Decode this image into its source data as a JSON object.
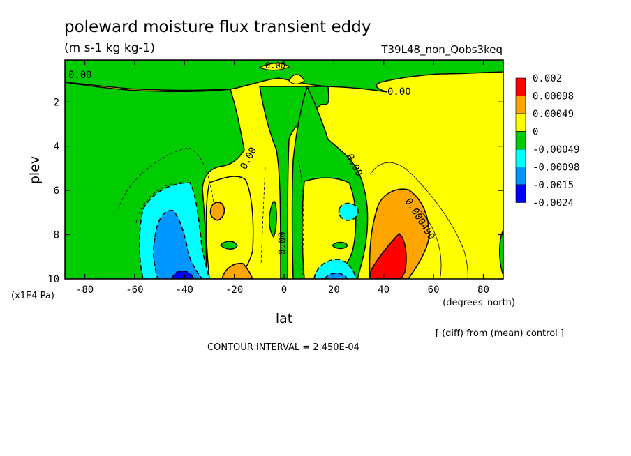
{
  "chart_data": {
    "type": "heatmap",
    "title": "poleward moisture flux transient eddy",
    "units_label": "(m s-1 kg kg-1)",
    "experiment_label": "T39L48_non_Qobs3keq",
    "xlabel": "lat",
    "x_units": "(degrees_north)",
    "ylabel": "plev",
    "y_units": "(x1E4 Pa)",
    "xlim": [
      -88,
      88
    ],
    "ylim": [
      10,
      0.1
    ],
    "y_inverted": true,
    "x_ticks": [
      -80,
      -60,
      -40,
      -20,
      0,
      20,
      40,
      60,
      80
    ],
    "x_tick_labels": [
      "-80",
      "-60",
      "-40",
      "-20",
      "0",
      "20",
      "40",
      "60",
      "80"
    ],
    "y_ticks": [
      2,
      4,
      6,
      8,
      10
    ],
    "y_tick_labels": [
      "2",
      "4",
      "6",
      "8",
      "10"
    ],
    "note": "[ (diff) from (mean) control ]",
    "contour_interval_text": "CONTOUR INTERVAL = 2.450E-04",
    "colorbar": {
      "labels": [
        "0.002",
        "0.00098",
        "0.00049",
        "0",
        "-0.00049",
        "-0.00098",
        "-0.0015",
        "-0.0024"
      ],
      "colors": [
        "#ff0000",
        "#ffa500",
        "#ffff00",
        "#00cc00",
        "#00ffff",
        "#0096ff",
        "#0000ff"
      ]
    },
    "contour_labels": [
      "0.00",
      "0.00",
      "0.00",
      "0.00",
      "0.00",
      "0.00",
      "0.000490"
    ],
    "features": [
      {
        "kind": "min",
        "lat": -45,
        "plev": 8.6,
        "level": -0.0015
      },
      {
        "kind": "min",
        "lat": -40,
        "plev": 9.9,
        "level": -0.0024
      },
      {
        "kind": "min",
        "lat": 20,
        "plev": 9.5,
        "level": -0.00098
      },
      {
        "kind": "min",
        "lat": 25,
        "plev": 7.0,
        "level": -0.00049
      },
      {
        "kind": "max",
        "lat": 42,
        "plev": 9.2,
        "level": 0.002
      },
      {
        "kind": "max",
        "lat": 45,
        "plev": 7.5,
        "level": 0.00098
      },
      {
        "kind": "max",
        "lat": -20,
        "plev": 9.5,
        "level": 0.00098
      },
      {
        "kind": "max",
        "lat": -27,
        "plev": 7.0,
        "level": 0.00049
      }
    ]
  }
}
